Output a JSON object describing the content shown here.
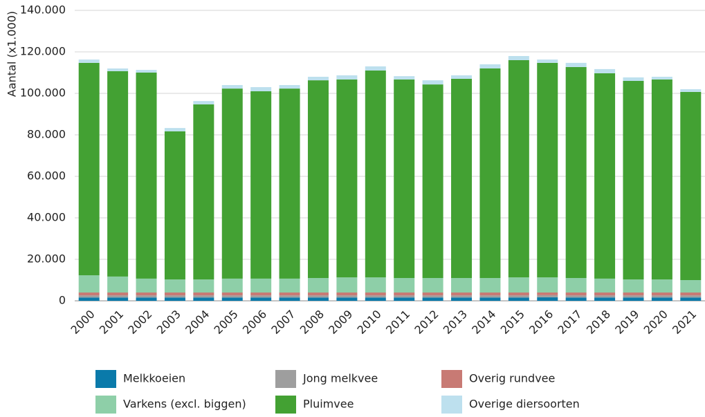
{
  "chart_data": {
    "type": "stacked_bar",
    "y_axis_label": "Aantal (x1.000)",
    "categories": [
      "2000",
      "2001",
      "2002",
      "2003",
      "2004",
      "2005",
      "2006",
      "2007",
      "2008",
      "2009",
      "2010",
      "2011",
      "2012",
      "2013",
      "2014",
      "2015",
      "2016",
      "2017",
      "2018",
      "2019",
      "2020",
      "2021"
    ],
    "series": [
      {
        "name": "Melkkoeien",
        "color": "#0a7aaa",
        "values": [
          1600,
          1600,
          1600,
          1600,
          1600,
          1600,
          1600,
          1600,
          1600,
          1600,
          1600,
          1600,
          1600,
          1600,
          1600,
          1600,
          1700,
          1600,
          1600,
          1600,
          1600,
          1600
        ]
      },
      {
        "name": "Jong melkvee",
        "color": "#9e9e9e",
        "values": [
          1000,
          1000,
          1000,
          1000,
          1000,
          1000,
          1000,
          1000,
          1000,
          1000,
          1000,
          1000,
          1000,
          1000,
          1000,
          1000,
          1000,
          1000,
          1000,
          1000,
          1000,
          1000
        ]
      },
      {
        "name": "Overig rundvee",
        "color": "#c87a74",
        "values": [
          1400,
          1400,
          1400,
          1400,
          1400,
          1400,
          1400,
          1400,
          1400,
          1400,
          1400,
          1400,
          1400,
          1400,
          1400,
          1400,
          1300,
          1400,
          1400,
          1400,
          1400,
          1400
        ]
      },
      {
        "name": "Varkens (excl. biggen)",
        "color": "#8ecfa8",
        "values": [
          8300,
          7700,
          6700,
          6300,
          6300,
          6700,
          6700,
          6700,
          7000,
          7300,
          7300,
          7000,
          7000,
          7000,
          7000,
          7300,
          7300,
          7000,
          6700,
          6300,
          6300,
          6000
        ]
      },
      {
        "name": "Pluimvee",
        "color": "#43a133",
        "values": [
          102400,
          99000,
          99300,
          71400,
          84400,
          91600,
          90300,
          91600,
          95300,
          95400,
          99700,
          95700,
          93300,
          96000,
          101000,
          104700,
          103400,
          101700,
          99000,
          95700,
          96400,
          90700
        ]
      },
      {
        "name": "Overige diersoorten",
        "color": "#bde0ee",
        "values": [
          1600,
          1300,
          1300,
          1600,
          1600,
          1700,
          2000,
          1700,
          1700,
          2000,
          2000,
          1600,
          2000,
          1700,
          2000,
          2000,
          1600,
          2000,
          2000,
          1700,
          1300,
          1300
        ]
      }
    ],
    "ylim": [
      0,
      140000
    ],
    "yticks": [
      0,
      {
        "value": 20000,
        "label": "20.000"
      },
      {
        "value": 40000,
        "label": "40.000"
      },
      {
        "value": 60000,
        "label": "60.000"
      },
      {
        "value": 80000,
        "label": "80.000"
      },
      {
        "value": 100000,
        "label": "100.000"
      },
      {
        "value": 120000,
        "label": "120.000"
      },
      {
        "value": 140000,
        "label": "140.000"
      }
    ],
    "grid": true,
    "legend": "bottom"
  }
}
